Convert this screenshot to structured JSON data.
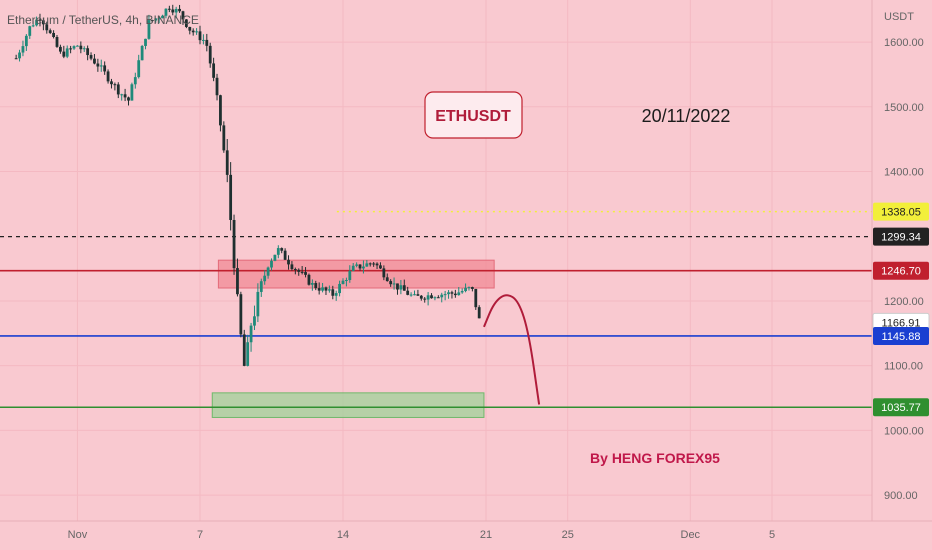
{
  "header": {
    "symbol_title": "Ethereum / TetherUS, 4h, BINANCE"
  },
  "annotations": {
    "pair_label": "ETHUSDT",
    "date_label": "20/11/2022",
    "author": "By HENG FOREX95"
  },
  "colors": {
    "background": "#f9c9d0",
    "up": "#1f8a7a",
    "down": "#1f2f2f",
    "resistance_line": "#c0202e",
    "support_line": "#1a3fd1",
    "target_line": "#2f8f2f",
    "projection": "#b01c3a",
    "resistance_zone": "#f08a96",
    "target_zone": "#9fd19a",
    "author_text": "#c0184a"
  },
  "chart_data": {
    "type": "candlestick",
    "title": "Ethereum / TetherUS, 4h, BINANCE",
    "ylabel": "USDT",
    "ylim": [
      860,
      1665
    ],
    "x_ticks": [
      "Nov",
      "7",
      "14",
      "21",
      "25",
      "Dec",
      "5"
    ],
    "y_ticks": [
      "1600.00",
      "1500.00",
      "1400.00",
      "1200.00",
      "1100.00",
      "1000.00",
      "900.00"
    ],
    "price_levels": [
      {
        "value": 1338.05,
        "label": "1338.05",
        "style": "dotted",
        "color": "#f2ef3a"
      },
      {
        "value": 1299.34,
        "label": "1299.34",
        "style": "dashed",
        "color": "#222222"
      },
      {
        "value": 1246.7,
        "label": "1246.70",
        "style": "solid",
        "color": "#c0202e"
      },
      {
        "value": 1166.91,
        "label": "1166.91",
        "style": "last-price",
        "color": "#ffffff"
      },
      {
        "value": 1145.88,
        "label": "1145.88",
        "style": "solid",
        "color": "#1a3fd1"
      },
      {
        "value": 1035.77,
        "label": "1035.77",
        "style": "solid",
        "color": "#2f8f2f"
      }
    ],
    "zones": [
      {
        "name": "resistance",
        "x_from_day": 7.9,
        "x_to_day": 21.4,
        "y_from": 1220,
        "y_to": 1263
      },
      {
        "name": "target",
        "x_from_day": 7.6,
        "x_to_day": 20.9,
        "y_from": 1020,
        "y_to": 1058
      }
    ],
    "projection_path_day_price": [
      [
        20.9,
        1160
      ],
      [
        21.4,
        1198
      ],
      [
        22.0,
        1212
      ],
      [
        22.6,
        1200
      ],
      [
        23.1,
        1150
      ],
      [
        23.6,
        1040
      ]
    ],
    "ohlc_anchor_points_day_price": [
      [
        -2,
        1575
      ],
      [
        -1.3,
        1625
      ],
      [
        -0.8,
        1640
      ],
      [
        -0.3,
        1610
      ],
      [
        0.2,
        1580
      ],
      [
        1.0,
        1595
      ],
      [
        2.0,
        1565
      ],
      [
        3.0,
        1525
      ],
      [
        3.5,
        1510
      ],
      [
        4.0,
        1570
      ],
      [
        4.5,
        1630
      ],
      [
        5.0,
        1640
      ],
      [
        5.5,
        1655
      ],
      [
        6.0,
        1645
      ],
      [
        6.5,
        1620
      ],
      [
        7.3,
        1600
      ],
      [
        7.8,
        1520
      ],
      [
        8.3,
        1400
      ],
      [
        8.6,
        1290
      ],
      [
        8.9,
        1170
      ],
      [
        9.2,
        1090
      ],
      [
        9.5,
        1165
      ],
      [
        9.9,
        1210
      ],
      [
        10.3,
        1255
      ],
      [
        10.8,
        1280
      ],
      [
        11.5,
        1255
      ],
      [
        12.5,
        1225
      ],
      [
        13.5,
        1210
      ],
      [
        14.5,
        1250
      ],
      [
        15.5,
        1260
      ],
      [
        16.5,
        1225
      ],
      [
        17.5,
        1205
      ],
      [
        18.5,
        1210
      ],
      [
        19.5,
        1212
      ],
      [
        20.3,
        1220
      ],
      [
        20.7,
        1166
      ]
    ]
  }
}
